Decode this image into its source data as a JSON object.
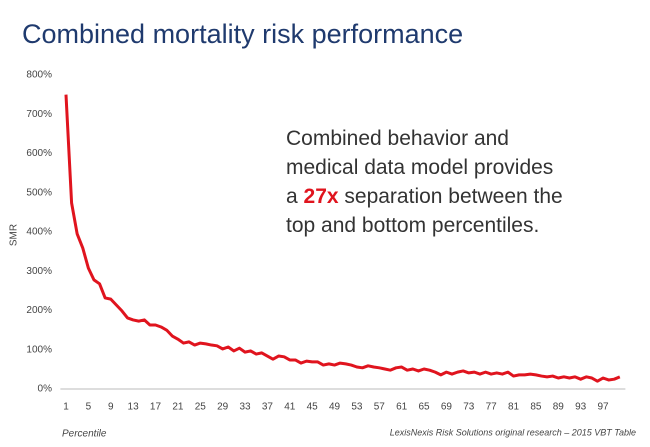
{
  "chart_data": {
    "type": "line",
    "title": "Combined mortality risk performance",
    "y_label": "SMR",
    "x_label": "Percentile",
    "source": "LexisNexis Risk Solutions original research – 2015 VBT Table",
    "annotation": {
      "lines": [
        "Combined behavior and",
        "medical data model provides"
      ],
      "line3": [
        "a ",
        "27x",
        " separation between the"
      ],
      "line4": "top and bottom percentiles.",
      "highlight_color": "#e0141e"
    },
    "color": "#e0141e",
    "x": [
      1,
      2,
      3,
      4,
      5,
      6,
      7,
      8,
      9,
      10,
      11,
      12,
      13,
      14,
      15,
      16,
      17,
      18,
      19,
      20,
      21,
      22,
      23,
      24,
      25,
      26,
      27,
      28,
      29,
      30,
      31,
      32,
      33,
      34,
      35,
      36,
      37,
      38,
      39,
      40,
      41,
      42,
      43,
      44,
      45,
      46,
      47,
      48,
      49,
      50,
      51,
      52,
      53,
      54,
      55,
      56,
      57,
      58,
      59,
      60,
      61,
      62,
      63,
      64,
      65,
      66,
      67,
      68,
      69,
      70,
      71,
      72,
      73,
      74,
      75,
      76,
      77,
      78,
      79,
      80,
      81,
      82,
      83,
      84,
      85,
      86,
      87,
      88,
      89,
      90,
      91,
      92,
      93,
      94,
      95,
      96,
      97,
      98,
      99,
      100
    ],
    "values": [
      750,
      474,
      395,
      359,
      308,
      278,
      268,
      232,
      229,
      214,
      199,
      181,
      176,
      173,
      176,
      163,
      163,
      158,
      150,
      135,
      127,
      117,
      120,
      112,
      117,
      115,
      112,
      110,
      102,
      107,
      97,
      104,
      94,
      97,
      89,
      92,
      84,
      76,
      84,
      82,
      74,
      74,
      66,
      71,
      69,
      69,
      61,
      64,
      61,
      66,
      64,
      61,
      56,
      54,
      59,
      56,
      54,
      51,
      48,
      54,
      56,
      48,
      51,
      46,
      51,
      48,
      43,
      36,
      43,
      38,
      43,
      46,
      41,
      43,
      38,
      43,
      38,
      41,
      38,
      43,
      33,
      36,
      36,
      38,
      36,
      33,
      31,
      33,
      28,
      31,
      28,
      31,
      25,
      31,
      28,
      20,
      28,
      23,
      25,
      31
    ],
    "xlim": [
      0,
      101
    ],
    "xticks": [
      1,
      5,
      9,
      13,
      17,
      21,
      25,
      29,
      33,
      37,
      41,
      45,
      49,
      53,
      57,
      61,
      65,
      69,
      73,
      77,
      81,
      85,
      89,
      93,
      97
    ],
    "ylim": [
      0,
      800
    ],
    "yticks": [
      {
        "value": 0,
        "label": "0%"
      },
      {
        "value": 100,
        "label": "100%"
      },
      {
        "value": 200,
        "label": "200%"
      },
      {
        "value": 300,
        "label": "300%"
      },
      {
        "value": 400,
        "label": "400%"
      },
      {
        "value": 500,
        "label": "500%"
      },
      {
        "value": 600,
        "label": "600%"
      },
      {
        "value": 700,
        "label": "700%"
      },
      {
        "value": 800,
        "label": "800%"
      }
    ],
    "grid": false
  }
}
